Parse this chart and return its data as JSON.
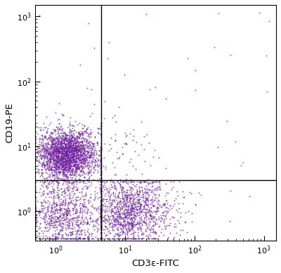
{
  "xlabel": "CD3ε-FITC",
  "ylabel": "CD19-PE",
  "xlim": [
    0.5,
    1500
  ],
  "ylim": [
    0.35,
    1500
  ],
  "dot_color": "#7020A0",
  "dot_size": 1.8,
  "dot_alpha": 0.75,
  "gate_x": 4.5,
  "gate_y": 3.0,
  "background_color": "#ffffff",
  "seed": 42,
  "n_b_cells": 2500,
  "n_t_cells": 1400,
  "n_double_neg": 1000,
  "n_scatter": 60
}
